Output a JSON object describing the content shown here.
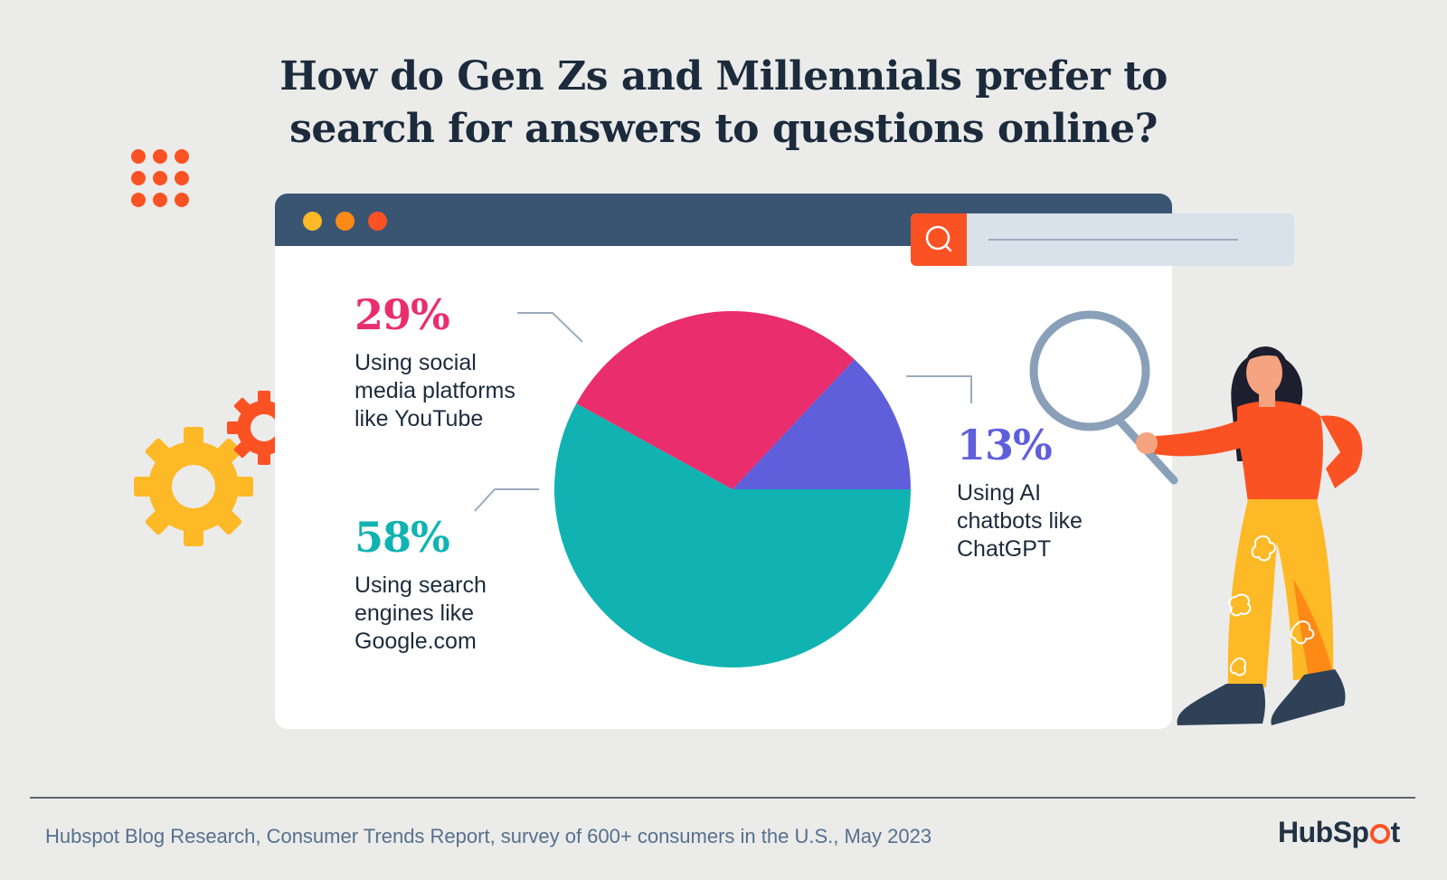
{
  "title": {
    "line1": "How do Gen Zs and Millennials prefer to",
    "line2": "search for answers to questions online?"
  },
  "chart_data": {
    "type": "pie",
    "title": "How do Gen Zs and Millennials prefer to search for answers to questions online?",
    "slices": [
      {
        "label": "Using search engines like Google.com",
        "value": 58,
        "display": "58%",
        "color": "#10b3b1",
        "line1": "Using search",
        "line2": "engines like",
        "line3": "Google.com"
      },
      {
        "label": "Using social media platforms like YouTube",
        "value": 29,
        "display": "29%",
        "color": "#ea2d6d",
        "line1": "Using social",
        "line2": "media platforms",
        "line3": "like YouTube"
      },
      {
        "label": "Using AI chatbots like ChatGPT",
        "value": 13,
        "display": "13%",
        "color": "#5f5edb",
        "line1": "Using AI",
        "line2": "chatbots like",
        "line3": "ChatGPT"
      }
    ]
  },
  "colors": {
    "background": "#ebebea",
    "title": "#1c2b3c",
    "window_bar": "#3a5572",
    "accent_orange": "#fb5224",
    "accent_yellow": "#fdb926"
  },
  "icons": {
    "window_dots": [
      "yellow-dot",
      "orange-dot",
      "red-dot"
    ],
    "search": "search-icon",
    "decor": [
      "dot-grid-icon",
      "gear-icon",
      "magnifier-illustration",
      "person-illustration"
    ]
  },
  "footer": {
    "source": "Hubspot Blog Research, Consumer Trends Report, survey of 600+ consumers in the U.S., May 2023",
    "logo_text_a": "HubSp",
    "logo_text_b": "t"
  }
}
